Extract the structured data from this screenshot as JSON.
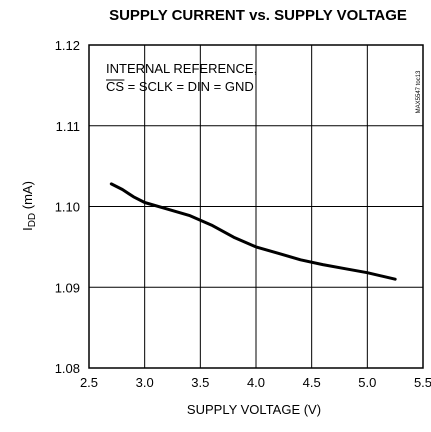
{
  "chart_data": {
    "type": "line",
    "title": "SUPPLY CURRENT vs. SUPPLY VOLTAGE",
    "xlabel": "SUPPLY VOLTAGE (V)",
    "ylabel": {
      "main": "I",
      "sub": "DD",
      "unit": " (mA)"
    },
    "xlim": [
      2.5,
      5.5
    ],
    "ylim": [
      1.08,
      1.12
    ],
    "x_ticks": [
      "2.5",
      "3.0",
      "3.5",
      "4.0",
      "4.5",
      "5.0",
      "5.5"
    ],
    "y_ticks": [
      "1.08",
      "1.09",
      "1.10",
      "1.11",
      "1.12"
    ],
    "grid": true,
    "annotation": {
      "line1": "INTERNAL REFERENCE,",
      "line2_overbar": "CS",
      "line2_rest": " = SCLK = DIN = GND"
    },
    "figure_tag": "MAX5547 toc13",
    "series": [
      {
        "x": [
          2.7,
          2.8,
          2.9,
          3.0,
          3.2,
          3.4,
          3.6,
          3.8,
          4.0,
          4.2,
          4.4,
          4.6,
          4.8,
          5.0,
          5.25
        ],
        "y": [
          1.1028,
          1.1021,
          1.1012,
          1.1005,
          1.0997,
          1.0989,
          1.0977,
          1.0962,
          1.095,
          1.0942,
          1.0934,
          1.0928,
          1.0923,
          1.0918,
          1.091
        ]
      }
    ]
  }
}
